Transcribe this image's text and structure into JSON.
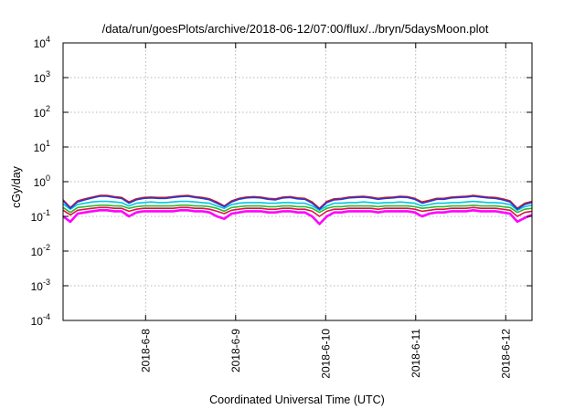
{
  "chart_data": {
    "type": "line",
    "title": "/data/run/goesPlots/archive/2018-06-12/07:00/flux/../bryn/5daysMoon.plot",
    "xlabel": "Coordinated Universal Time (UTC)",
    "ylabel": "cGy/day",
    "yscale": "log",
    "ylim": [
      0.0001,
      10000
    ],
    "xlim": [
      "2018-06-07 02:00",
      "2018-06-12 07:00"
    ],
    "grid": true,
    "legend": "none",
    "x_ticks": [
      {
        "label": "2018-6-8",
        "value": "2018-06-08 00:00"
      },
      {
        "label": "2018-6-9",
        "value": "2018-06-09 00:00"
      },
      {
        "label": "2018-6-10",
        "value": "2018-06-10 00:00"
      },
      {
        "label": "2018-6-11",
        "value": "2018-06-11 00:00"
      },
      {
        "label": "2018-6-12",
        "value": "2018-06-12 00:00"
      }
    ],
    "y_ticks": [
      {
        "base": "10",
        "exp": "4",
        "value": 10000
      },
      {
        "base": "10",
        "exp": "3",
        "value": 1000
      },
      {
        "base": "10",
        "exp": "2",
        "value": 100
      },
      {
        "base": "10",
        "exp": "1",
        "value": 10
      },
      {
        "base": "10",
        "exp": "0",
        "value": 1
      },
      {
        "base": "10",
        "exp": "-1",
        "value": 0.1
      },
      {
        "base": "10",
        "exp": "-2",
        "value": 0.01
      },
      {
        "base": "10",
        "exp": "-3",
        "value": 0.001
      },
      {
        "base": "10",
        "exp": "-4",
        "value": 0.0001
      }
    ],
    "series": [
      {
        "color": "#ff00ff",
        "values": [
          0.1,
          0.07,
          0.12,
          0.13,
          0.14,
          0.15,
          0.15,
          0.14,
          0.14,
          0.1,
          0.13,
          0.14,
          0.14,
          0.14,
          0.14,
          0.14,
          0.15,
          0.15,
          0.14,
          0.14,
          0.13,
          0.1,
          0.085,
          0.12,
          0.13,
          0.14,
          0.14,
          0.14,
          0.13,
          0.13,
          0.14,
          0.14,
          0.13,
          0.13,
          0.1,
          0.06,
          0.1,
          0.13,
          0.13,
          0.14,
          0.14,
          0.14,
          0.14,
          0.13,
          0.14,
          0.14,
          0.14,
          0.14,
          0.13,
          0.1,
          0.12,
          0.13,
          0.13,
          0.14,
          0.14,
          0.14,
          0.15,
          0.14,
          0.14,
          0.14,
          0.13,
          0.12,
          0.07,
          0.09,
          0.11
        ]
      },
      {
        "color": "#e0104a",
        "values": [
          0.15,
          0.11,
          0.15,
          0.16,
          0.17,
          0.18,
          0.18,
          0.17,
          0.17,
          0.14,
          0.16,
          0.17,
          0.17,
          0.17,
          0.17,
          0.17,
          0.18,
          0.18,
          0.17,
          0.17,
          0.16,
          0.14,
          0.12,
          0.15,
          0.16,
          0.17,
          0.17,
          0.17,
          0.16,
          0.16,
          0.17,
          0.17,
          0.16,
          0.16,
          0.14,
          0.1,
          0.14,
          0.16,
          0.16,
          0.17,
          0.17,
          0.17,
          0.17,
          0.16,
          0.17,
          0.17,
          0.17,
          0.17,
          0.16,
          0.14,
          0.15,
          0.16,
          0.16,
          0.17,
          0.17,
          0.17,
          0.18,
          0.17,
          0.17,
          0.17,
          0.16,
          0.15,
          0.1,
          0.13,
          0.14
        ]
      },
      {
        "color": "#2db82d",
        "values": [
          0.18,
          0.13,
          0.18,
          0.19,
          0.2,
          0.21,
          0.21,
          0.2,
          0.2,
          0.17,
          0.19,
          0.2,
          0.2,
          0.2,
          0.2,
          0.2,
          0.21,
          0.21,
          0.2,
          0.2,
          0.19,
          0.17,
          0.14,
          0.18,
          0.19,
          0.2,
          0.2,
          0.2,
          0.19,
          0.19,
          0.2,
          0.2,
          0.19,
          0.19,
          0.17,
          0.13,
          0.17,
          0.19,
          0.19,
          0.2,
          0.2,
          0.2,
          0.2,
          0.19,
          0.2,
          0.2,
          0.2,
          0.2,
          0.19,
          0.17,
          0.18,
          0.19,
          0.19,
          0.2,
          0.2,
          0.2,
          0.21,
          0.2,
          0.2,
          0.2,
          0.19,
          0.18,
          0.13,
          0.16,
          0.17
        ]
      },
      {
        "color": "#00c8e0",
        "values": [
          0.23,
          0.16,
          0.22,
          0.24,
          0.26,
          0.27,
          0.27,
          0.26,
          0.25,
          0.2,
          0.24,
          0.25,
          0.26,
          0.25,
          0.25,
          0.26,
          0.27,
          0.27,
          0.26,
          0.25,
          0.24,
          0.2,
          0.17,
          0.22,
          0.24,
          0.25,
          0.25,
          0.25,
          0.24,
          0.24,
          0.25,
          0.25,
          0.24,
          0.24,
          0.2,
          0.15,
          0.2,
          0.24,
          0.24,
          0.25,
          0.25,
          0.26,
          0.25,
          0.24,
          0.25,
          0.25,
          0.26,
          0.25,
          0.24,
          0.2,
          0.22,
          0.24,
          0.24,
          0.25,
          0.25,
          0.26,
          0.27,
          0.26,
          0.25,
          0.25,
          0.24,
          0.22,
          0.15,
          0.19,
          0.21
        ]
      },
      {
        "color": "#d01818",
        "values": [
          0.3,
          0.18,
          0.28,
          0.32,
          0.36,
          0.4,
          0.4,
          0.37,
          0.35,
          0.26,
          0.32,
          0.35,
          0.36,
          0.35,
          0.35,
          0.37,
          0.39,
          0.4,
          0.37,
          0.35,
          0.32,
          0.26,
          0.2,
          0.28,
          0.33,
          0.36,
          0.37,
          0.36,
          0.33,
          0.32,
          0.36,
          0.37,
          0.34,
          0.33,
          0.26,
          0.17,
          0.27,
          0.32,
          0.33,
          0.36,
          0.37,
          0.38,
          0.36,
          0.33,
          0.35,
          0.36,
          0.38,
          0.37,
          0.33,
          0.26,
          0.29,
          0.33,
          0.33,
          0.36,
          0.37,
          0.38,
          0.4,
          0.38,
          0.36,
          0.35,
          0.32,
          0.28,
          0.17,
          0.24,
          0.27
        ]
      },
      {
        "color": "#2a36d8",
        "values": [
          0.28,
          0.17,
          0.26,
          0.3,
          0.34,
          0.38,
          0.38,
          0.35,
          0.33,
          0.24,
          0.3,
          0.33,
          0.34,
          0.33,
          0.33,
          0.35,
          0.37,
          0.38,
          0.35,
          0.33,
          0.3,
          0.24,
          0.19,
          0.26,
          0.31,
          0.34,
          0.35,
          0.34,
          0.31,
          0.3,
          0.34,
          0.35,
          0.32,
          0.31,
          0.24,
          0.16,
          0.25,
          0.3,
          0.31,
          0.34,
          0.35,
          0.36,
          0.34,
          0.31,
          0.33,
          0.34,
          0.36,
          0.35,
          0.31,
          0.24,
          0.27,
          0.31,
          0.31,
          0.34,
          0.35,
          0.36,
          0.38,
          0.36,
          0.34,
          0.33,
          0.3,
          0.26,
          0.16,
          0.22,
          0.25
        ]
      }
    ]
  }
}
